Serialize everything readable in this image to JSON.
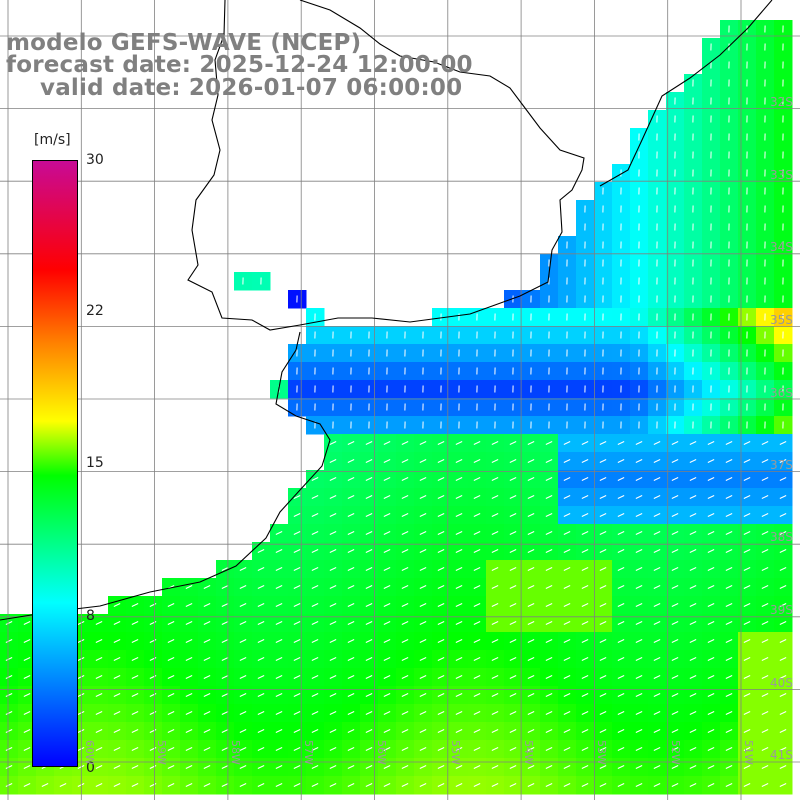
{
  "title": {
    "line1": "modelo GEFS-WAVE (NCEP)",
    "line2": "forecast date: 2025-12-24 12:00:00",
    "line3": "valid date: 2026-01-07 06:00:00"
  },
  "colorbar": {
    "unit": "[m/s]",
    "ticks": [
      "30",
      "22",
      "15",
      "8",
      "0"
    ],
    "tick_values": [
      30,
      22,
      15,
      8,
      0
    ],
    "range": [
      0,
      30
    ],
    "colors": [
      "#0000ff",
      "#00ffff",
      "#00ff00",
      "#ffff00",
      "#ff8000",
      "#ff0000",
      "#c80a96"
    ]
  },
  "lat_labels": [
    "32S",
    "33S",
    "34S",
    "35S",
    "36S",
    "37S",
    "38S",
    "39S",
    "40S",
    "41S"
  ],
  "lon_labels": [
    "60W",
    "59W",
    "58W",
    "57W",
    "56W",
    "55W",
    "54W",
    "53W",
    "52W",
    "51W"
  ],
  "colors": {
    "land": "#ffffff",
    "coastline": "#000000",
    "grid": "#808080",
    "arrows": "#ffffff"
  }
}
